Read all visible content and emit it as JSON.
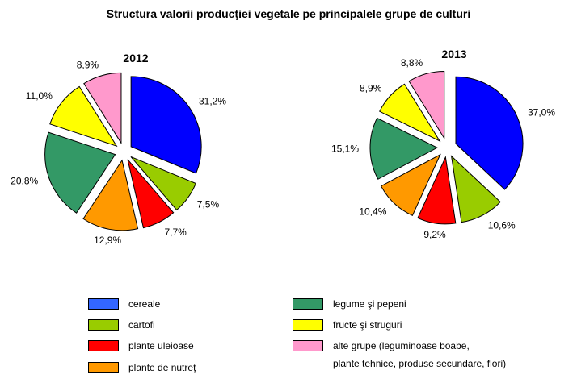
{
  "chart_data": {
    "type": "pie",
    "title": "Structura valorii producţiei vegetale pe principalele grupe de culturi",
    "categories": [
      "cereale",
      "cartofi",
      "plante uleioase",
      "plante de nutreţ",
      "legume şi pepeni",
      "fructe şi struguri",
      "alte grupe (leguminoase boabe, plante tehnice, produse secundare, flori)"
    ],
    "colors": [
      "#0000ff",
      "#99cc00",
      "#ff0000",
      "#ff9900",
      "#339966",
      "#ffff00",
      "#ff99cc"
    ],
    "pies": [
      {
        "name": "2012",
        "values": [
          31.2,
          7.5,
          7.7,
          12.9,
          20.8,
          11.0,
          8.9
        ],
        "labels": [
          "31,2%",
          "7,5%",
          "7,7%",
          "12,9%",
          "20,8%",
          "11,0%",
          "8,9%"
        ]
      },
      {
        "name": "2013",
        "values": [
          37.0,
          10.6,
          9.2,
          10.4,
          15.1,
          8.9,
          8.8
        ],
        "labels": [
          "37,0%",
          "10,6%",
          "9,2%",
          "10,4%",
          "15,1%",
          "8,9%",
          "8,8%"
        ]
      }
    ],
    "legend": {
      "col1": [
        "cereale",
        "cartofi",
        "plante uleioase",
        "plante de nutreţ"
      ],
      "col2": [
        "legume şi pepeni",
        "fructe şi struguri",
        "alte grupe (leguminoase boabe,"
      ],
      "col2_extra_line": "plante tehnice, produse secundare, flori)",
      "col1_colors": [
        "#3366ff",
        "#99cc00",
        "#ff0000",
        "#ff9900"
      ],
      "col2_colors": [
        "#339966",
        "#ffff00",
        "#ff99cc"
      ]
    }
  }
}
